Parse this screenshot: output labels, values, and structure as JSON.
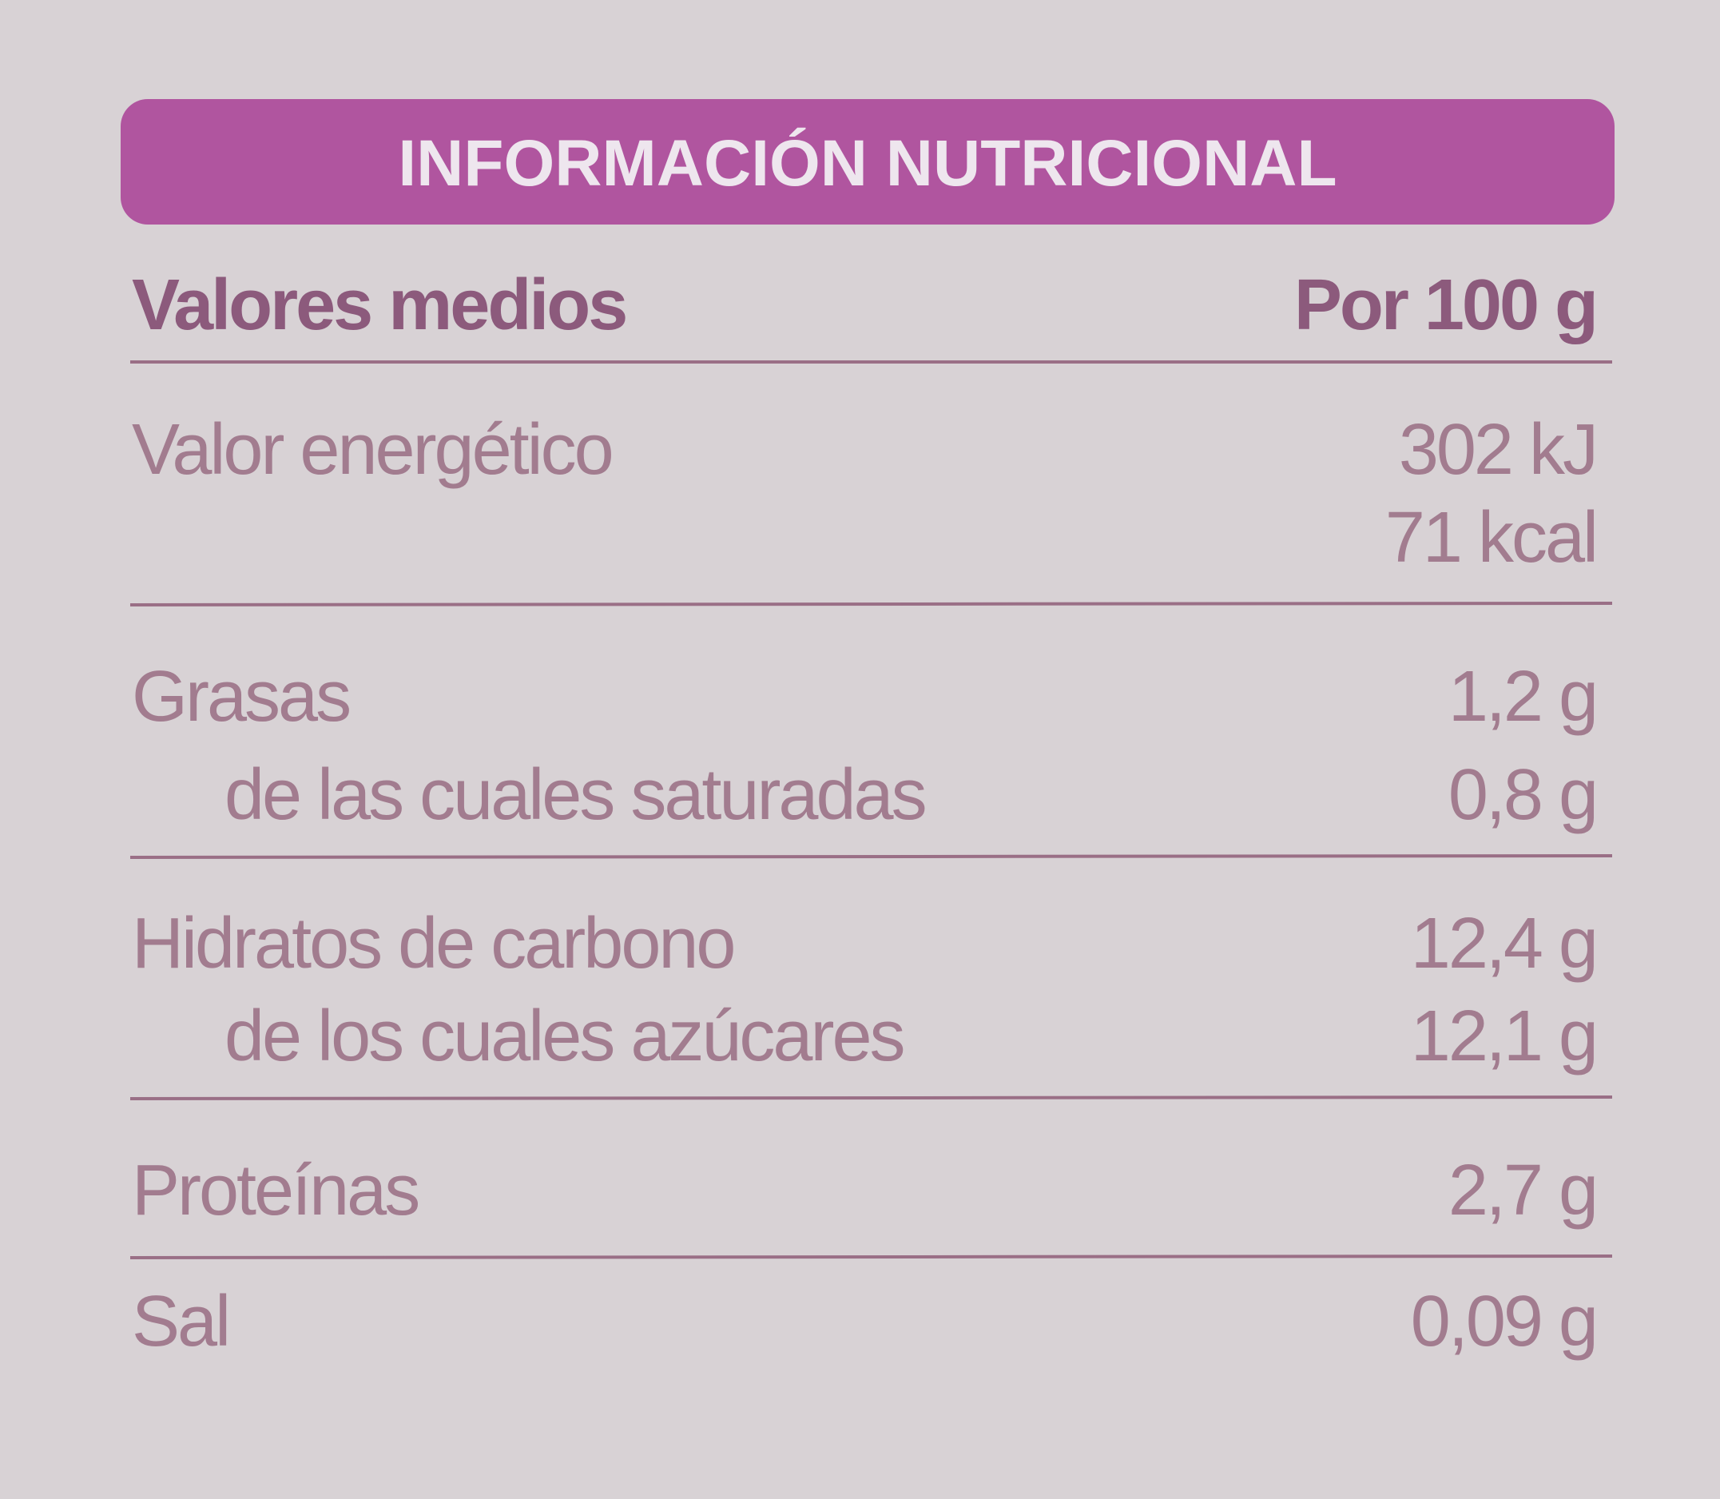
{
  "header": {
    "title": "INFORMACIÓN NUTRICIONAL"
  },
  "table": {
    "columns": [
      "Valores medios",
      "Por 100 g"
    ],
    "rows": [
      [
        "Valor energético",
        "302 kJ"
      ],
      [
        "",
        "71 kcal"
      ],
      [
        "Grasas",
        "1,2 g"
      ],
      [
        "de las cuales saturadas",
        "0,8 g"
      ],
      [
        "Hidratos de carbono",
        "12,4 g"
      ],
      [
        "de los cuales azúcares",
        "12,1 g"
      ],
      [
        "Proteínas",
        "2,7 g"
      ],
      [
        "Sal",
        "0,09 g"
      ]
    ]
  }
}
